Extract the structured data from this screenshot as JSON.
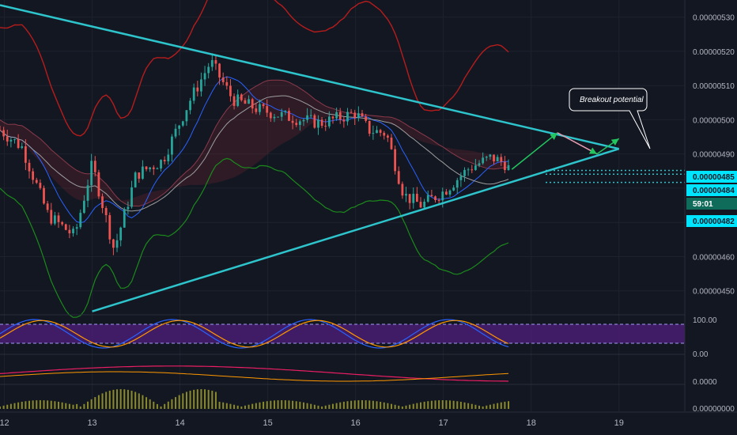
{
  "chart_data": {
    "type": "candlestick",
    "title": "",
    "price_ticks": [
      "0.00000530",
      "0.00000520",
      "0.00000510",
      "0.00000500",
      "0.00000490",
      "0.00000480",
      "0.00000470",
      "0.00000460",
      "0.00000450"
    ],
    "price_tick_values": [
      530,
      520,
      510,
      500,
      490,
      480,
      470,
      460,
      450
    ],
    "date_ticks": [
      "12",
      "13",
      "14",
      "15",
      "16",
      "17",
      "18",
      "19"
    ],
    "date_tick_values": [
      12,
      13,
      14,
      15,
      16,
      17,
      18,
      19
    ],
    "ylim": [
      443,
      535
    ],
    "xlim": [
      11.95,
      19.75
    ],
    "price_tags": [
      {
        "label": "0.00000485",
        "value": 485.2
      },
      {
        "label": "0.00000484",
        "value": 484.1
      },
      {
        "label": "59:01",
        "value": 483.0
      },
      {
        "label": "0.00000482",
        "value": 481.7
      }
    ],
    "annotation": {
      "text": "Breakout potential",
      "day": 18.55
    },
    "triangle": {
      "upper": [
        [
          11.95,
          533.5
        ],
        [
          19.0,
          491.5
        ]
      ],
      "lower": [
        [
          13.0,
          444.0
        ],
        [
          19.0,
          491.5
        ]
      ]
    },
    "projection_arrows": [
      {
        "from": [
          17.78,
          485.5
        ],
        "to": [
          18.3,
          496.2
        ]
      },
      {
        "from": [
          18.3,
          496.2
        ],
        "to": [
          18.75,
          490.0
        ]
      },
      {
        "from": [
          18.75,
          490.0
        ],
        "to": [
          19.0,
          494.5
        ]
      }
    ],
    "stoch_rsi": {
      "ticks": [
        "100.00",
        "0.00"
      ],
      "band": [
        20,
        80
      ]
    },
    "macd": {
      "ticks": [
        "0.0000"
      ]
    },
    "volume": {
      "ticks": [
        "0.00000000"
      ]
    },
    "colors": {
      "background": "#131722",
      "bull": "#26a69a",
      "bear": "#ef5350",
      "trendline": "#2ec4cc",
      "upper_band": "#b71c1c",
      "lower_band": "#1b8a1b",
      "tag": "#00e5ff",
      "rsi_band": "#4a1d72"
    }
  }
}
